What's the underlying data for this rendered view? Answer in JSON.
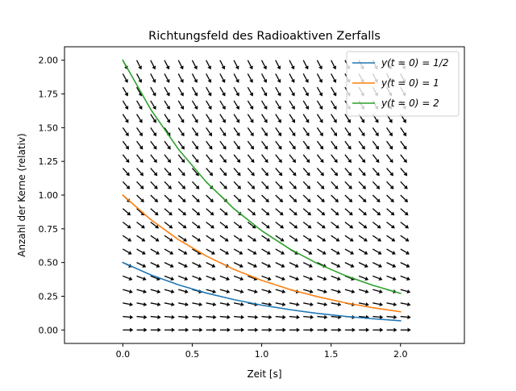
{
  "chart_data": {
    "type": "line",
    "title": "Richtungsfeld des Radioaktiven Zerfalls",
    "xlabel": "Zeit [s]",
    "ylabel": "Anzahl der Kerne (relativ)",
    "xlim": [
      -0.42,
      2.46
    ],
    "ylim": [
      -0.1,
      2.1
    ],
    "xticks": [
      "0.0",
      "0.5",
      "1.0",
      "1.5",
      "2.0"
    ],
    "xtick_values": [
      0.0,
      0.5,
      1.0,
      1.5,
      2.0
    ],
    "yticks": [
      "0.00",
      "0.25",
      "0.50",
      "0.75",
      "1.00",
      "1.25",
      "1.50",
      "1.75",
      "2.00"
    ],
    "ytick_values": [
      0.0,
      0.25,
      0.5,
      0.75,
      1.0,
      1.25,
      1.5,
      1.75,
      2.0
    ],
    "grid": false,
    "legend_position": "top-right",
    "decay_rate": 1.0,
    "direction_field": {
      "t_values": [
        0.0,
        0.1,
        0.2,
        0.3,
        0.4,
        0.5,
        0.6,
        0.7,
        0.8,
        0.9,
        1.0,
        1.1,
        1.2,
        1.3,
        1.4,
        1.5,
        1.6,
        1.7,
        1.8,
        1.9,
        2.0
      ],
      "y_values": [
        0.0,
        0.1,
        0.2,
        0.3,
        0.4,
        0.5,
        0.6,
        0.7,
        0.8,
        0.9,
        1.0,
        1.1,
        1.2,
        1.3,
        1.4,
        1.5,
        1.6,
        1.7,
        1.8,
        1.9,
        2.0
      ],
      "color": "#000000"
    },
    "series": [
      {
        "name": "y(t = 0) = 1/2",
        "color": "#1f77b4",
        "x": [
          0.0,
          0.2,
          0.4,
          0.6,
          0.8,
          1.0,
          1.2,
          1.4,
          1.6,
          1.8,
          2.0
        ],
        "y": [
          0.5,
          0.409,
          0.335,
          0.274,
          0.225,
          0.184,
          0.151,
          0.123,
          0.101,
          0.083,
          0.068
        ]
      },
      {
        "name": "y(t = 0) = 1",
        "color": "#ff7f0e",
        "x": [
          0.0,
          0.2,
          0.4,
          0.6,
          0.8,
          1.0,
          1.2,
          1.4,
          1.6,
          1.8,
          2.0
        ],
        "y": [
          1.0,
          0.819,
          0.67,
          0.549,
          0.449,
          0.368,
          0.301,
          0.247,
          0.202,
          0.165,
          0.135
        ]
      },
      {
        "name": "y(t = 0) = 2",
        "color": "#2ca02c",
        "x": [
          0.0,
          0.2,
          0.4,
          0.6,
          0.8,
          1.0,
          1.2,
          1.4,
          1.6,
          1.8,
          2.0
        ],
        "y": [
          2.0,
          1.637,
          1.341,
          1.098,
          0.899,
          0.736,
          0.602,
          0.493,
          0.404,
          0.331,
          0.271
        ]
      }
    ]
  }
}
